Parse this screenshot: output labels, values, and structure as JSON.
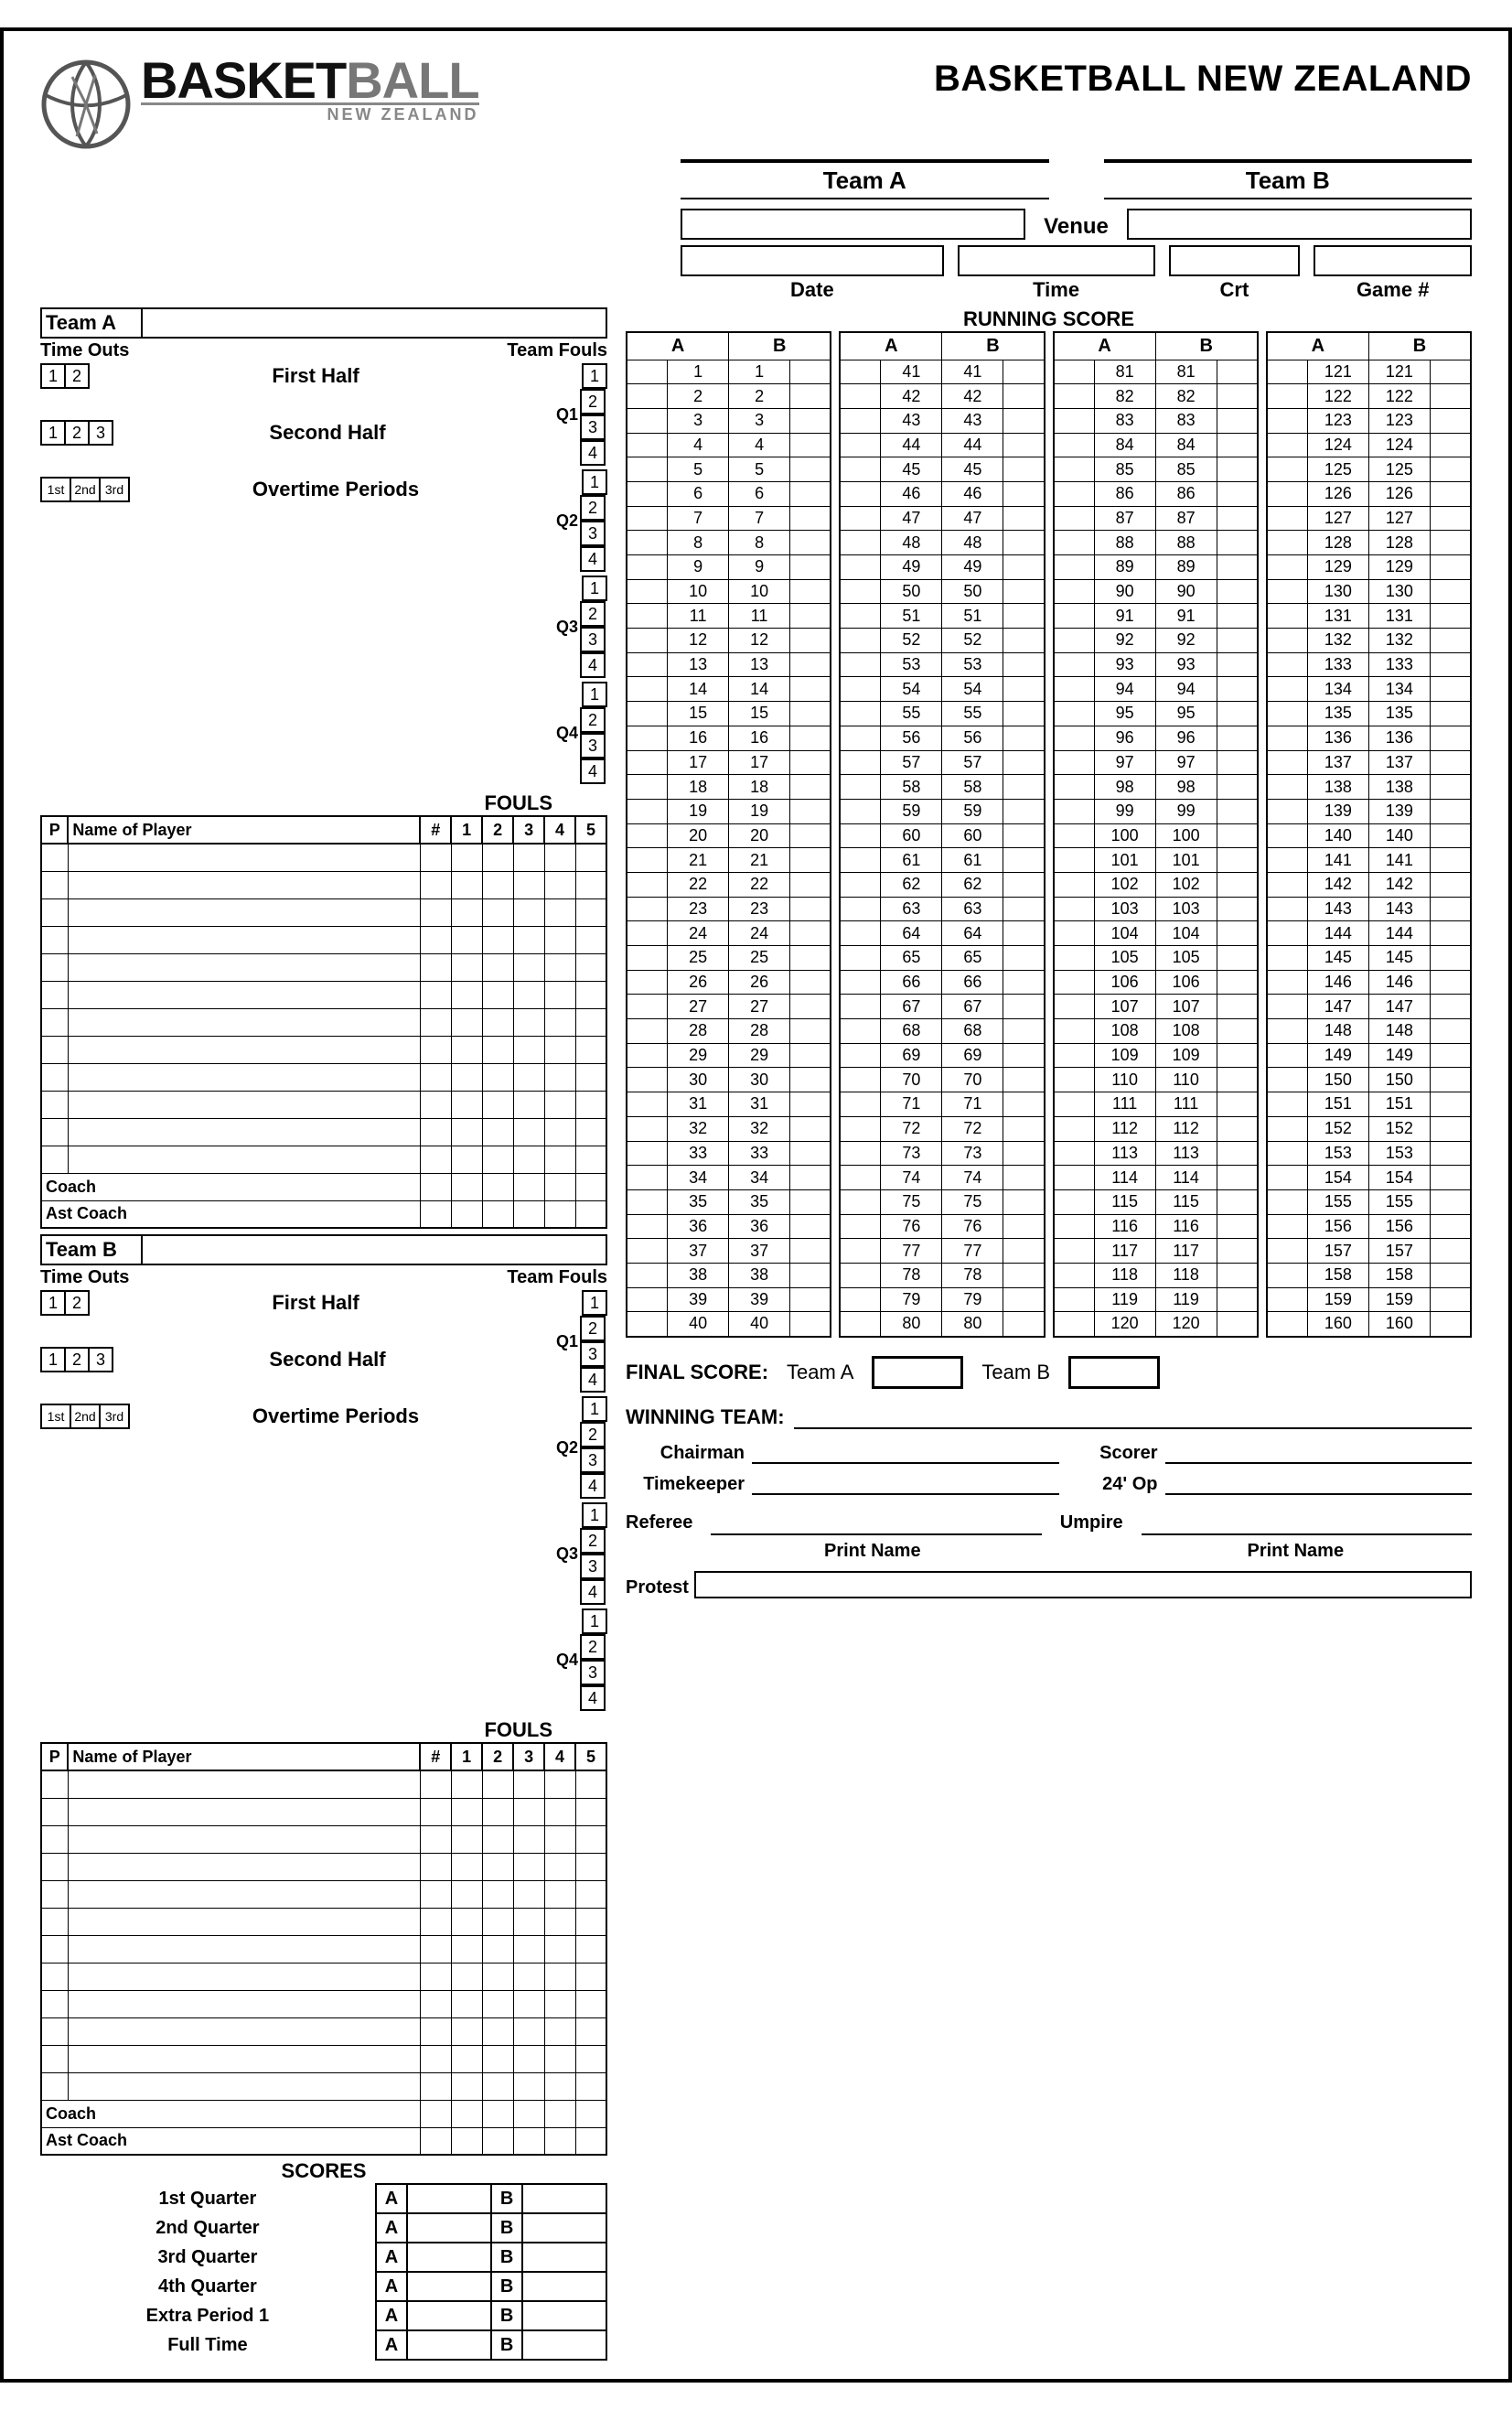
{
  "org_name": "BASKETBALL NEW ZEALAND",
  "wordmark_bold": "BASKET",
  "wordmark_light": "BALL",
  "wordmark_sub": "NEW ZEALAND",
  "team_a_label": "Team A",
  "team_b_label": "Team B",
  "venue_label": "Venue",
  "date_label": "Date",
  "time_label": "Time",
  "crt_label": "Crt",
  "game_label": "Game #",
  "timeouts_label": "Time Outs",
  "teamfouls_label": "Team Fouls",
  "first_half": "First Half",
  "second_half": "Second Half",
  "overtime": "Overtime Periods",
  "fouls_label": "FOULS",
  "p_col": "P",
  "name_col": "Name of Player",
  "num_col": "#",
  "coach": "Coach",
  "ast_coach": "Ast Coach",
  "scores_label": "SCORES",
  "q1": "1st Quarter",
  "q2": "2nd Quarter",
  "q3": "3rd Quarter",
  "q4": "4th Quarter",
  "ep1": "Extra Period 1",
  "ft": "Full Time",
  "a": "A",
  "b": "B",
  "qlabels": [
    "Q1",
    "Q2",
    "Q3",
    "Q4"
  ],
  "to_first": [
    "1",
    "2"
  ],
  "to_second": [
    "1",
    "2",
    "3"
  ],
  "to_ot": [
    "1st",
    "2nd",
    "3rd"
  ],
  "tf_nums": [
    "1",
    "2",
    "3",
    "4"
  ],
  "foul_nums": [
    "1",
    "2",
    "3",
    "4",
    "5"
  ],
  "running_score_label": "RUNNING SCORE",
  "final_score": "FINAL SCORE:",
  "winning_team": "WINNING TEAM:",
  "chairman": "Chairman",
  "scorer": "Scorer",
  "timekeeper": "Timekeeper",
  "op24": "24' Op",
  "referee": "Referee",
  "umpire": "Umpire",
  "print_name": "Print Name",
  "protest": "Protest",
  "colors": {
    "black": "#000000",
    "gray_logo": "#808080",
    "gray_text": "#888888"
  },
  "roster_rows": 12,
  "running_columns": [
    {
      "start": 1,
      "end": 40
    },
    {
      "start": 41,
      "end": 80
    },
    {
      "start": 81,
      "end": 120
    },
    {
      "start": 121,
      "end": 160
    }
  ]
}
